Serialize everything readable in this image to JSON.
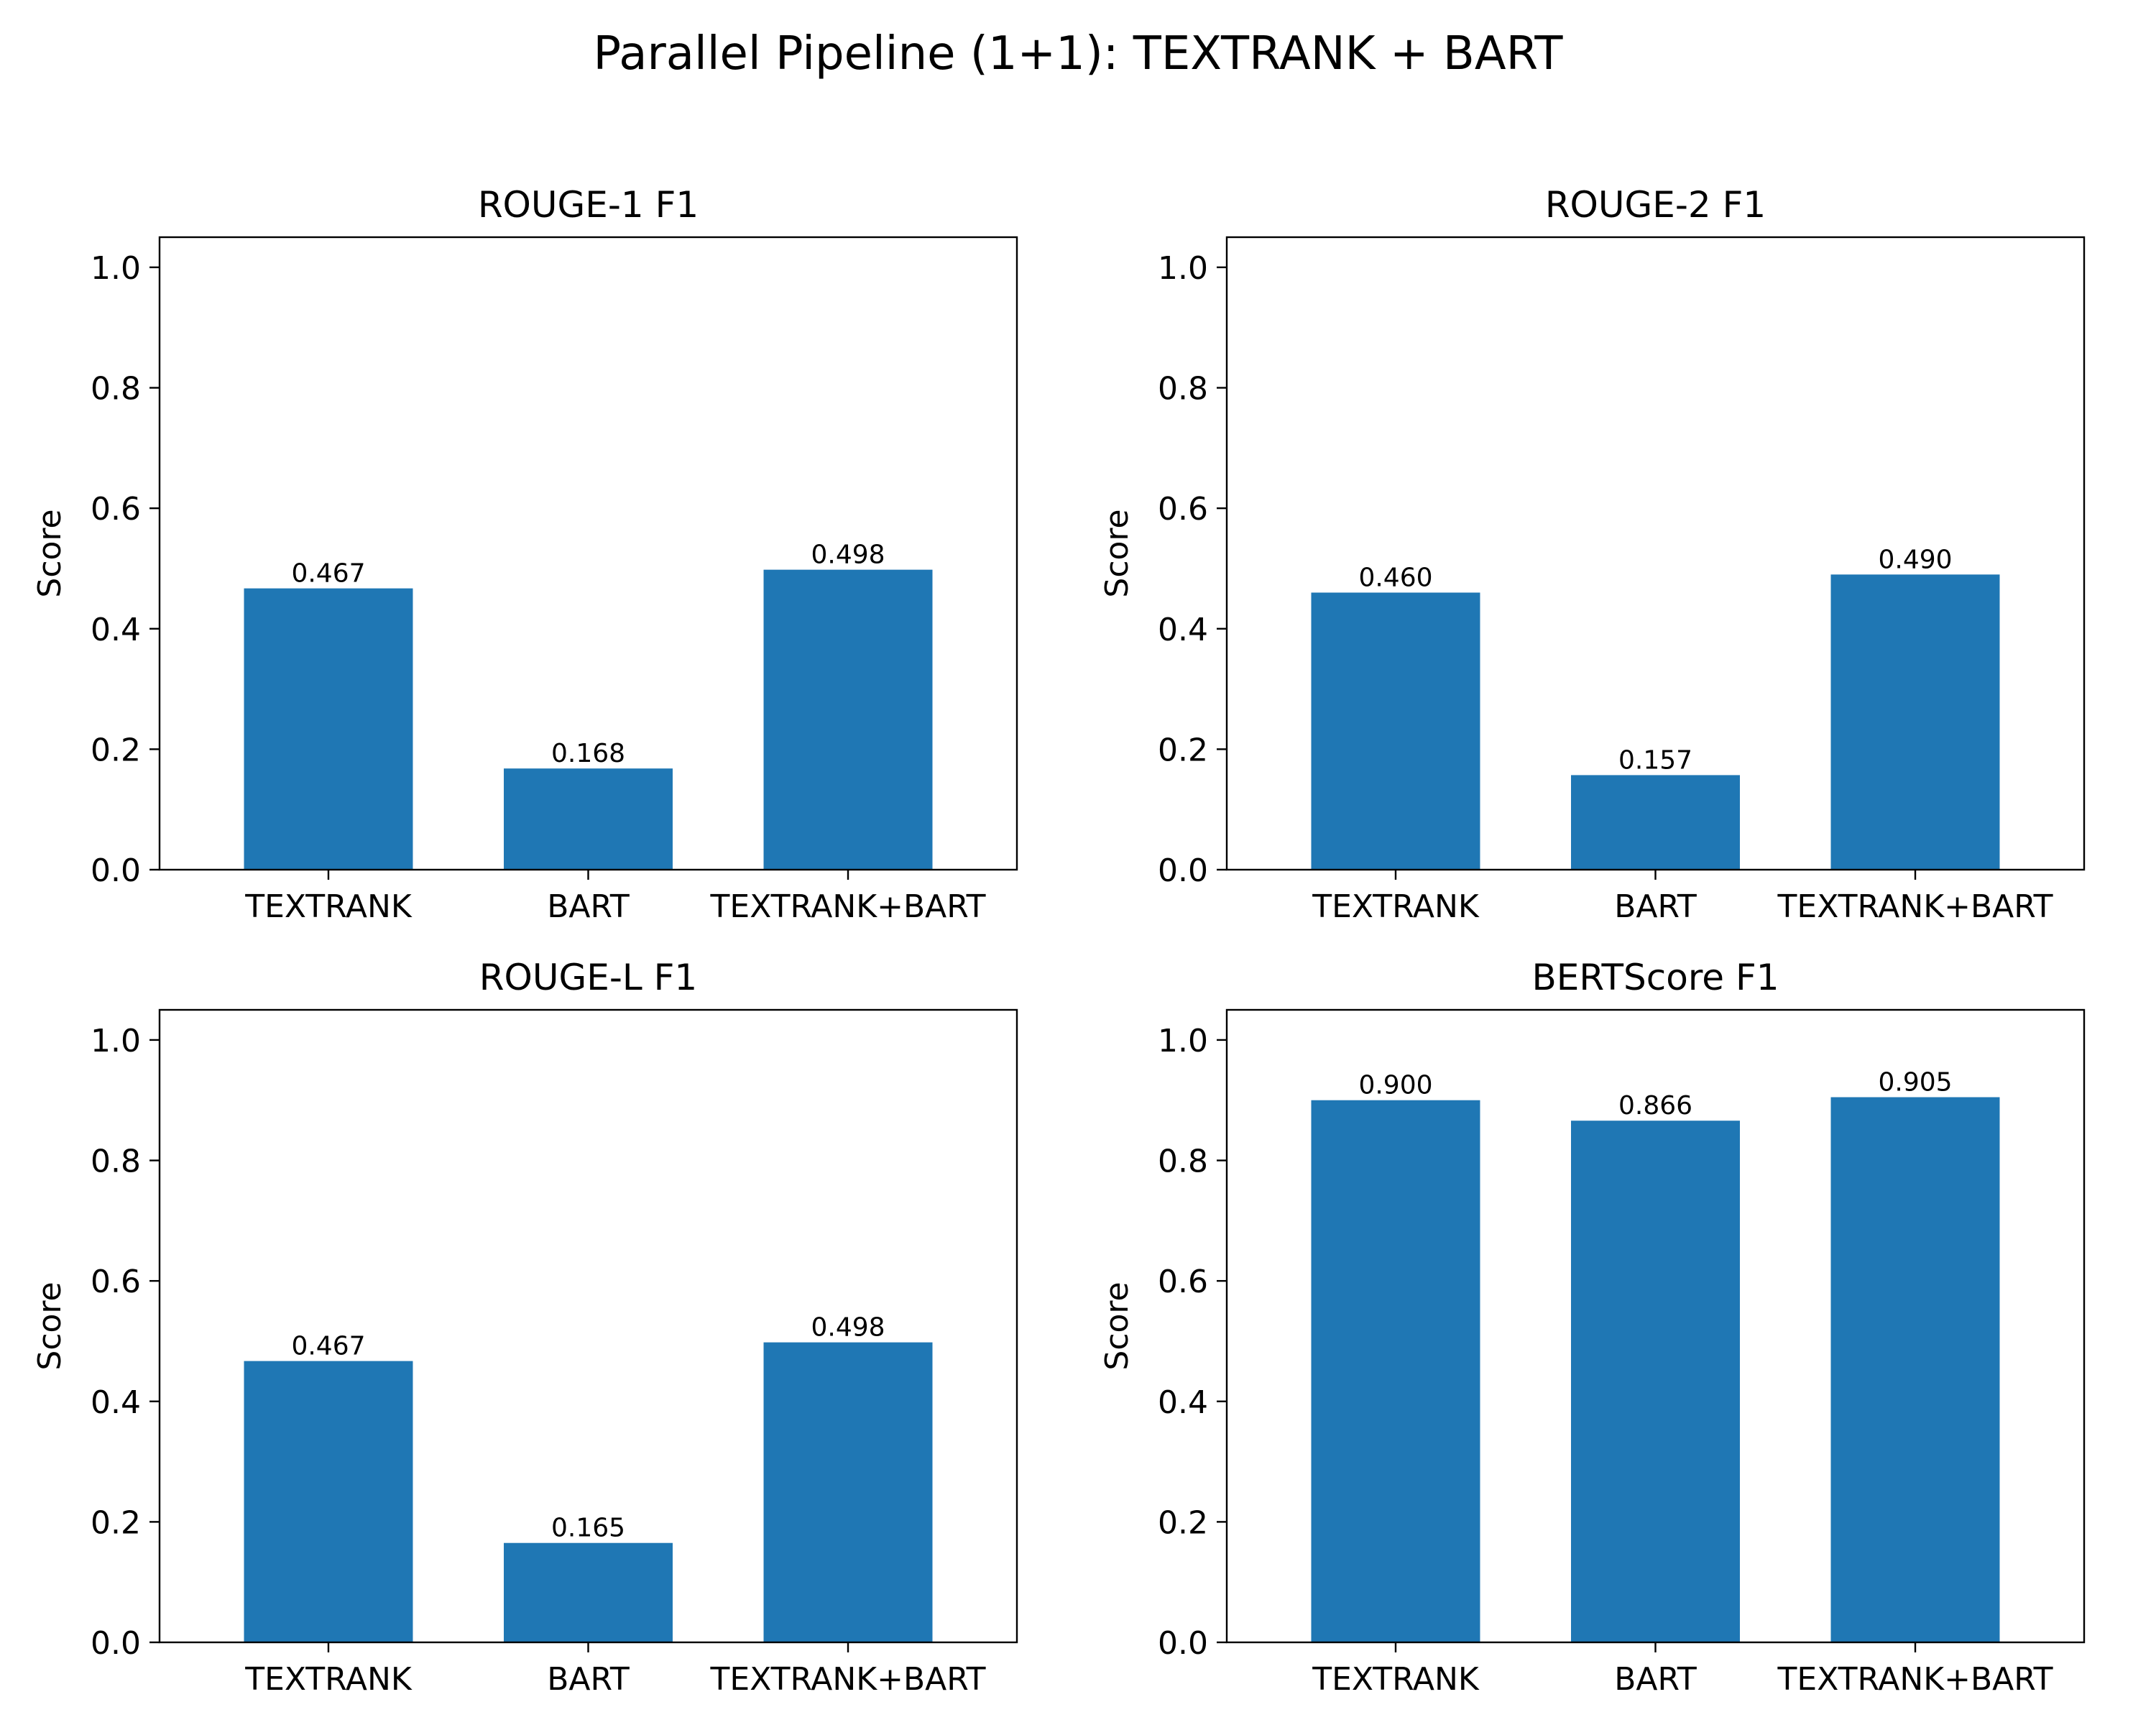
{
  "title": "Parallel Pipeline (1+1): TEXTRANK + BART",
  "colors": {
    "bar": "#1f77b4"
  },
  "chart_data": [
    {
      "type": "bar",
      "title": "ROUGE-1 F1",
      "ylabel": "Score",
      "xlabel": "",
      "categories": [
        "TEXTRANK",
        "BART",
        "TEXTRANK+BART"
      ],
      "values": [
        0.467,
        0.168,
        0.498
      ],
      "value_labels": [
        "0.467",
        "0.168",
        "0.498"
      ],
      "ylim": [
        0,
        1.05
      ],
      "yticks": [
        0.0,
        0.2,
        0.4,
        0.6,
        0.8,
        1.0
      ],
      "ytick_labels": [
        "0.0",
        "0.2",
        "0.4",
        "0.6",
        "0.8",
        "1.0"
      ],
      "grid": false
    },
    {
      "type": "bar",
      "title": "ROUGE-2 F1",
      "ylabel": "Score",
      "xlabel": "",
      "categories": [
        "TEXTRANK",
        "BART",
        "TEXTRANK+BART"
      ],
      "values": [
        0.46,
        0.157,
        0.49
      ],
      "value_labels": [
        "0.460",
        "0.157",
        "0.490"
      ],
      "ylim": [
        0,
        1.05
      ],
      "yticks": [
        0.0,
        0.2,
        0.4,
        0.6,
        0.8,
        1.0
      ],
      "ytick_labels": [
        "0.0",
        "0.2",
        "0.4",
        "0.6",
        "0.8",
        "1.0"
      ],
      "grid": false
    },
    {
      "type": "bar",
      "title": "ROUGE-L F1",
      "ylabel": "Score",
      "xlabel": "",
      "categories": [
        "TEXTRANK",
        "BART",
        "TEXTRANK+BART"
      ],
      "values": [
        0.467,
        0.165,
        0.498
      ],
      "value_labels": [
        "0.467",
        "0.165",
        "0.498"
      ],
      "ylim": [
        0,
        1.05
      ],
      "yticks": [
        0.0,
        0.2,
        0.4,
        0.6,
        0.8,
        1.0
      ],
      "ytick_labels": [
        "0.0",
        "0.2",
        "0.4",
        "0.6",
        "0.8",
        "1.0"
      ],
      "grid": false
    },
    {
      "type": "bar",
      "title": "BERTScore F1",
      "ylabel": "Score",
      "xlabel": "",
      "categories": [
        "TEXTRANK",
        "BART",
        "TEXTRANK+BART"
      ],
      "values": [
        0.9,
        0.866,
        0.905
      ],
      "value_labels": [
        "0.900",
        "0.866",
        "0.905"
      ],
      "ylim": [
        0,
        1.05
      ],
      "yticks": [
        0.0,
        0.2,
        0.4,
        0.6,
        0.8,
        1.0
      ],
      "ytick_labels": [
        "0.0",
        "0.2",
        "0.4",
        "0.6",
        "0.8",
        "1.0"
      ],
      "grid": false
    }
  ]
}
